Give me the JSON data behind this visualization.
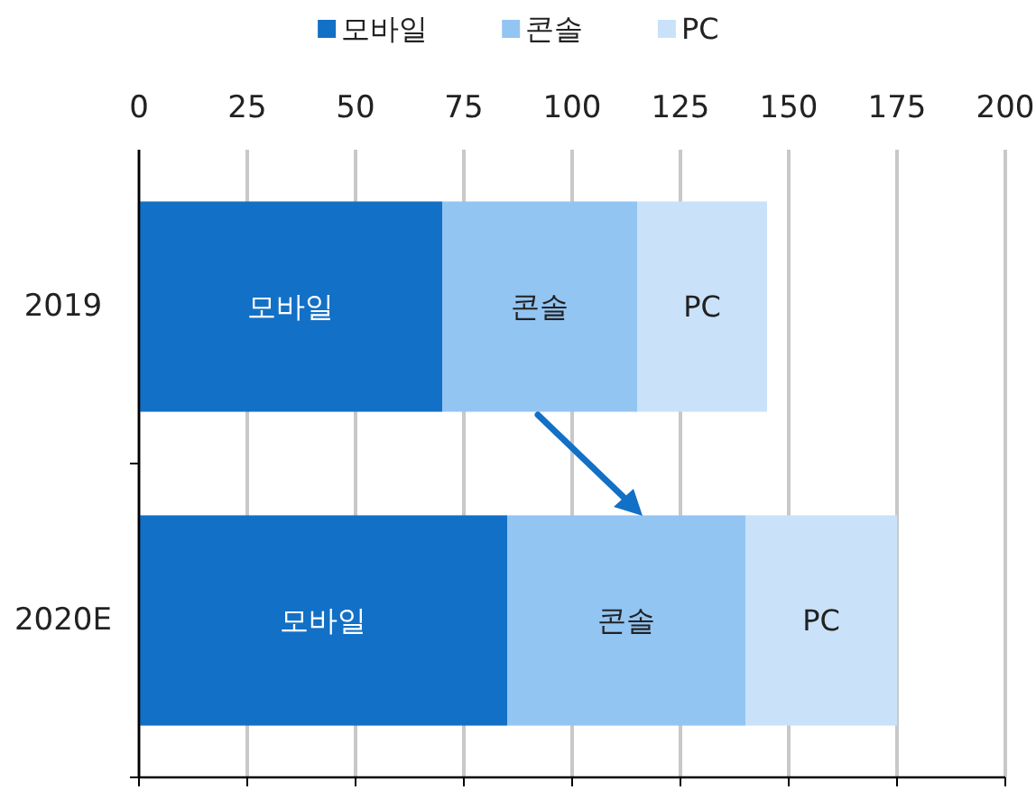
{
  "chart_data": {
    "type": "bar",
    "orientation": "horizontal",
    "stacked": true,
    "categories": [
      "2019",
      "2020E"
    ],
    "series": [
      {
        "name": "모바일",
        "color": "#1270c6",
        "values": [
          70,
          85
        ],
        "value_labels": [
          "모바일",
          "모바일"
        ]
      },
      {
        "name": "콘솔",
        "color": "#93c5f3",
        "values": [
          45,
          55
        ],
        "value_labels": [
          "콘솔",
          "콘솔"
        ]
      },
      {
        "name": "PC",
        "color": "#c9e2f9",
        "values": [
          30,
          35
        ],
        "value_labels": [
          "PC",
          "PC"
        ]
      }
    ],
    "xlim": [
      0,
      200
    ],
    "xticks": [
      0,
      25,
      50,
      75,
      100,
      125,
      150,
      175,
      200
    ],
    "grid": "x",
    "legend": "top"
  }
}
